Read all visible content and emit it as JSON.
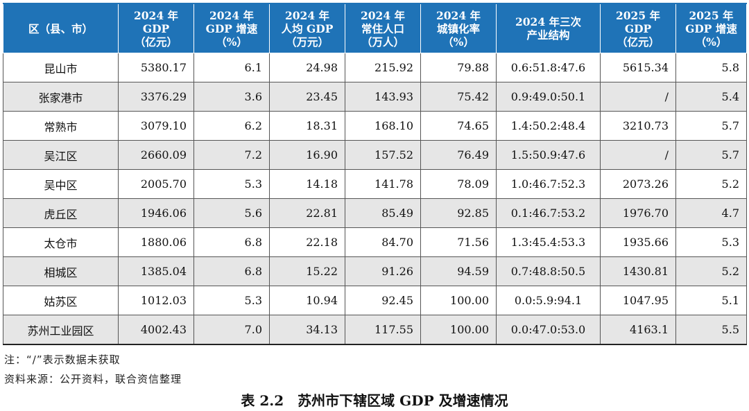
{
  "table": {
    "headers": [
      "区（县、市）",
      "2024 年\nGDP\n（亿元）",
      "2024 年\nGDP 增速\n（%）",
      "2024 年\n人均 GDP\n（万元）",
      "2024 年\n常住人口\n（万人）",
      "2024 年\n城镇化率\n（%）",
      "2024 年三次\n产业结构",
      "2025 年\nGDP\n（亿元）",
      "2025 年\nGDP 增速\n（%）"
    ],
    "rows": [
      [
        "昆山市",
        "5380.17",
        "6.1",
        "24.98",
        "215.92",
        "79.88",
        "0.6:51.8:47.6",
        "5615.34",
        "5.8"
      ],
      [
        "张家港市",
        "3376.29",
        "3.6",
        "23.45",
        "143.93",
        "75.42",
        "0.9:49.0:50.1",
        "/",
        "5.4"
      ],
      [
        "常熟市",
        "3079.10",
        "6.2",
        "18.31",
        "168.10",
        "74.65",
        "1.4:50.2:48.4",
        "3210.73",
        "5.7"
      ],
      [
        "吴江区",
        "2660.09",
        "7.2",
        "16.90",
        "157.52",
        "76.49",
        "1.5:50.9:47.6",
        "/",
        "5.7"
      ],
      [
        "吴中区",
        "2005.70",
        "5.3",
        "14.18",
        "141.78",
        "78.09",
        "1.0:46.7:52.3",
        "2073.26",
        "5.2"
      ],
      [
        "虎丘区",
        "1946.06",
        "5.6",
        "22.81",
        "85.49",
        "92.85",
        "0.1:46.7:53.2",
        "1976.70",
        "4.7"
      ],
      [
        "太仓市",
        "1880.06",
        "6.8",
        "22.18",
        "84.70",
        "71.56",
        "1.3:45.4:53.3",
        "1935.66",
        "5.3"
      ],
      [
        "相城区",
        "1385.04",
        "6.8",
        "15.22",
        "91.26",
        "94.59",
        "0.7:48.8:50.5",
        "1430.81",
        "5.2"
      ],
      [
        "姑苏区",
        "1012.03",
        "5.3",
        "10.94",
        "92.45",
        "100.00",
        "0.0:5.9:94.1",
        "1047.95",
        "5.1"
      ],
      [
        "苏州工业园区",
        "4002.43",
        "7.0",
        "34.13",
        "117.55",
        "100.00",
        "0.0:47.0:53.0",
        "4163.1",
        "5.5"
      ]
    ]
  },
  "notes": {
    "note1": "注：“/”表示数据未获取",
    "note2": "资料来源：公开资料，联合资信整理"
  },
  "caption": "表 2.2　苏州市下辖区域 GDP 及增速情况",
  "colors": {
    "header_bg": "#1f73b7",
    "header_text": "#ffffff",
    "alt_row_bg": "#e6e6e6"
  }
}
